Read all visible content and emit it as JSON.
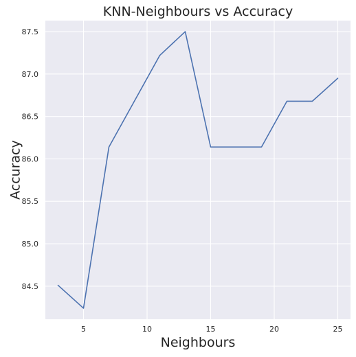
{
  "chart_data": {
    "type": "line",
    "title": "KNN-Neighbours vs Accuracy",
    "xlabel": "Neighbours",
    "ylabel": "Accuracy",
    "xlim": [
      2.0,
      26.0
    ],
    "ylim": [
      84.11,
      87.63
    ],
    "x_ticks": [
      5,
      10,
      15,
      20,
      25
    ],
    "y_ticks": [
      84.5,
      85.0,
      85.5,
      86.0,
      86.5,
      87.0,
      87.5
    ],
    "grid": true,
    "colors": {
      "background": "#eaeaf2",
      "grid": "#ffffff",
      "line": "#4c72b0",
      "text": "#262626"
    },
    "series": [
      {
        "x": [
          3,
          5,
          7,
          9,
          11,
          13,
          15,
          17,
          19,
          21,
          23,
          25
        ],
        "y": [
          84.51,
          84.24,
          86.14,
          86.68,
          87.22,
          87.5,
          86.14,
          86.14,
          86.14,
          86.68,
          86.68,
          86.95
        ]
      }
    ]
  }
}
